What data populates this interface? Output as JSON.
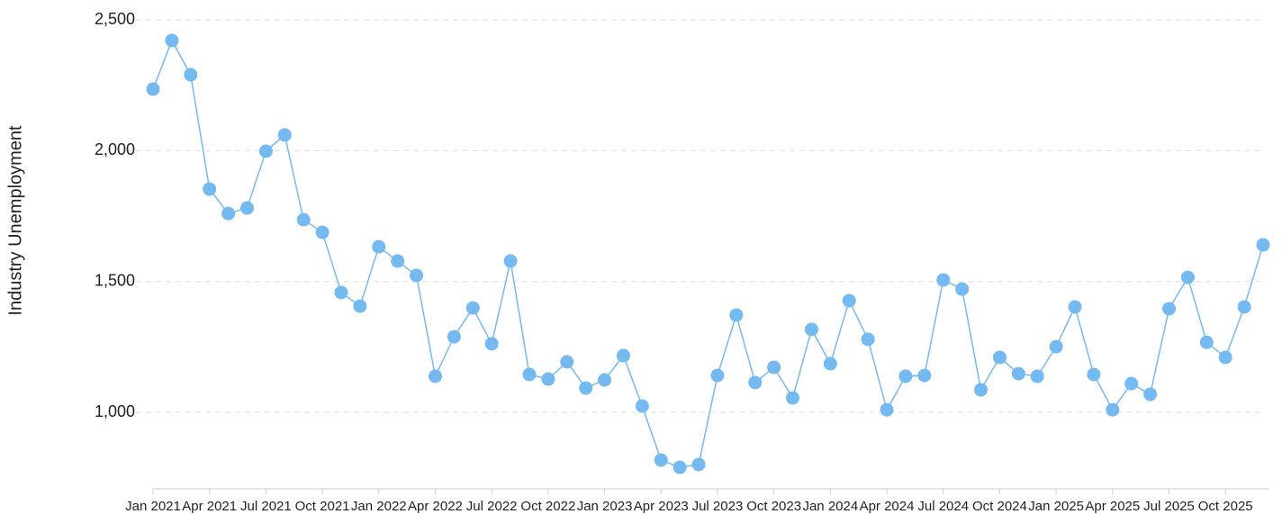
{
  "chart_data": {
    "type": "line",
    "ylabel": "Industry Unemployment",
    "categories": [
      "Jan 2021",
      null,
      null,
      "Apr 2021",
      null,
      null,
      "Jul 2021",
      null,
      null,
      "Oct 2021",
      null,
      null,
      "Jan 2022",
      null,
      null,
      "Apr 2022",
      null,
      null,
      "Jul 2022",
      null,
      null,
      "Oct 2022",
      null,
      null,
      "Jan 2023",
      null,
      null,
      "Apr 2023",
      null,
      null,
      "Jul 2023",
      null,
      null,
      "Oct 2023",
      null,
      null,
      "Jan 2024",
      null,
      null,
      "Apr 2024",
      null,
      null,
      "Jul 2024",
      null,
      null,
      "Oct 2024",
      null,
      null,
      "Jan 2025",
      null,
      null,
      "Apr 2025",
      null,
      null,
      "Jul 2025",
      null,
      null,
      "Oct 2025",
      null,
      null
    ],
    "series": [
      {
        "name": "Industry Unemployment",
        "color": "#74b9f0",
        "values": [
          2235,
          2421,
          2290,
          1853,
          1760,
          1781,
          1998,
          2060,
          1736,
          1688,
          1458,
          1406,
          1633,
          1578,
          1523,
          1138,
          1289,
          1399,
          1262,
          1578,
          1145,
          1127,
          1193,
          1093,
          1124,
          1217,
          1024,
          818,
          790,
          801,
          1141,
          1372,
          1114,
          1172,
          1055,
          1317,
          1186,
          1427,
          1279,
          1010,
          1138,
          1141,
          1506,
          1471,
          1086,
          1210,
          1148,
          1138,
          1251,
          1403,
          1145,
          1010,
          1110,
          1069,
          1396,
          1516,
          1268,
          1210,
          1403,
          1640
        ]
      }
    ],
    "ylim": [
      708,
      2500
    ],
    "yticks": [
      {
        "value": 1000,
        "label": "1,000"
      },
      {
        "value": 1500,
        "label": "1,500"
      },
      {
        "value": 2000,
        "label": "2,000"
      },
      {
        "value": 2500,
        "label": "2,500"
      }
    ],
    "grid": true
  }
}
